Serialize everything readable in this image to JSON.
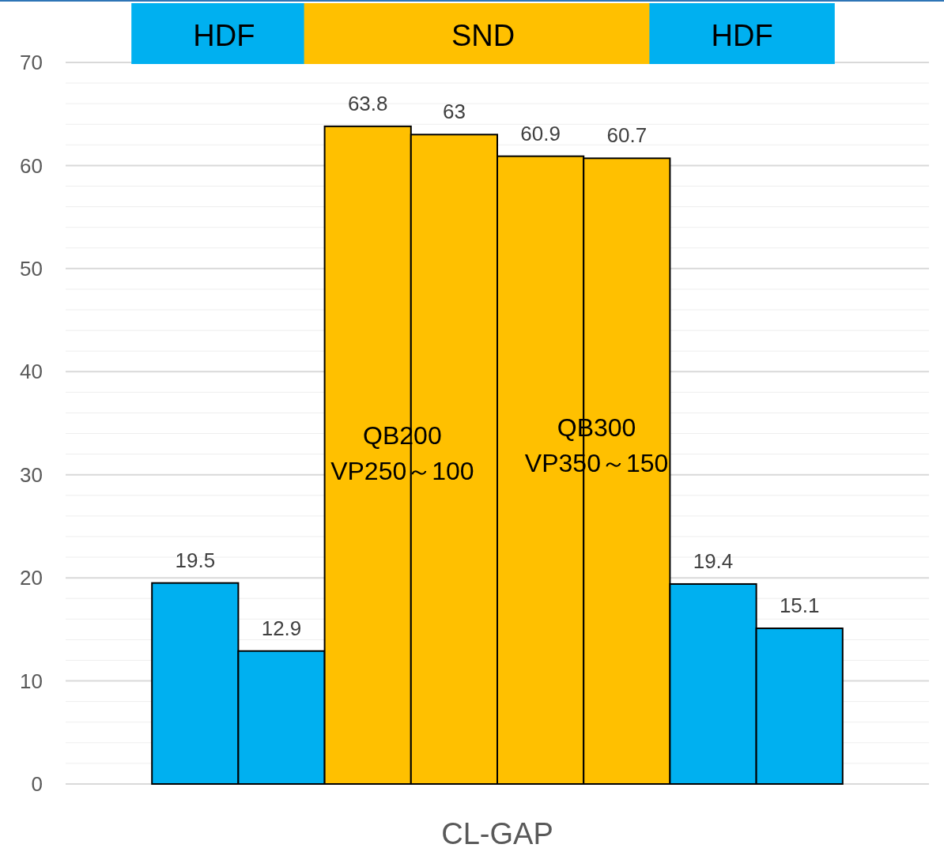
{
  "chart_data": {
    "type": "bar",
    "categories": [
      null,
      null,
      null,
      null,
      null,
      null,
      null,
      null
    ],
    "values": [
      19.5,
      12.9,
      63.8,
      63,
      60.9,
      60.7,
      19.4,
      15.1
    ],
    "colors": [
      "#00b0f0",
      "#00b0f0",
      "#ffc000",
      "#ffc000",
      "#ffc000",
      "#ffc000",
      "#00b0f0",
      "#00b0f0"
    ],
    "data_labels": true,
    "xlabel": "CL-GAP",
    "ylim": [
      0,
      70
    ],
    "yticks": [
      0,
      {
        "value": 2,
        "label": null
      },
      {
        "value": 4,
        "label": null
      },
      {
        "value": 6,
        "label": null
      },
      {
        "value": 8,
        "label": null
      },
      10,
      {
        "value": 12,
        "label": null
      },
      {
        "value": 14,
        "label": null
      },
      {
        "value": 16,
        "label": null
      },
      {
        "value": 18,
        "label": null
      },
      20,
      {
        "value": 22,
        "label": null
      },
      {
        "value": 24,
        "label": null
      },
      {
        "value": 26,
        "label": null
      },
      {
        "value": 28,
        "label": null
      },
      30,
      {
        "value": 32,
        "label": null
      },
      {
        "value": 34,
        "label": null
      },
      {
        "value": 36,
        "label": null
      },
      {
        "value": 38,
        "label": null
      },
      40,
      {
        "value": 42,
        "label": null
      },
      {
        "value": 44,
        "label": null
      },
      {
        "value": 46,
        "label": null
      },
      {
        "value": 48,
        "label": null
      },
      50,
      {
        "value": 52,
        "label": null
      },
      {
        "value": 54,
        "label": null
      },
      {
        "value": 56,
        "label": null
      },
      {
        "value": 58,
        "label": null
      },
      60,
      {
        "value": 62,
        "label": null
      },
      {
        "value": 64,
        "label": null
      },
      {
        "value": 66,
        "label": null
      },
      {
        "value": 68,
        "label": null
      },
      70
    ],
    "grid": true,
    "annotations": [
      "HDF",
      "SND",
      "HDF",
      "QB200\nVP250～100",
      "QB300\nVP350～150"
    ]
  }
}
